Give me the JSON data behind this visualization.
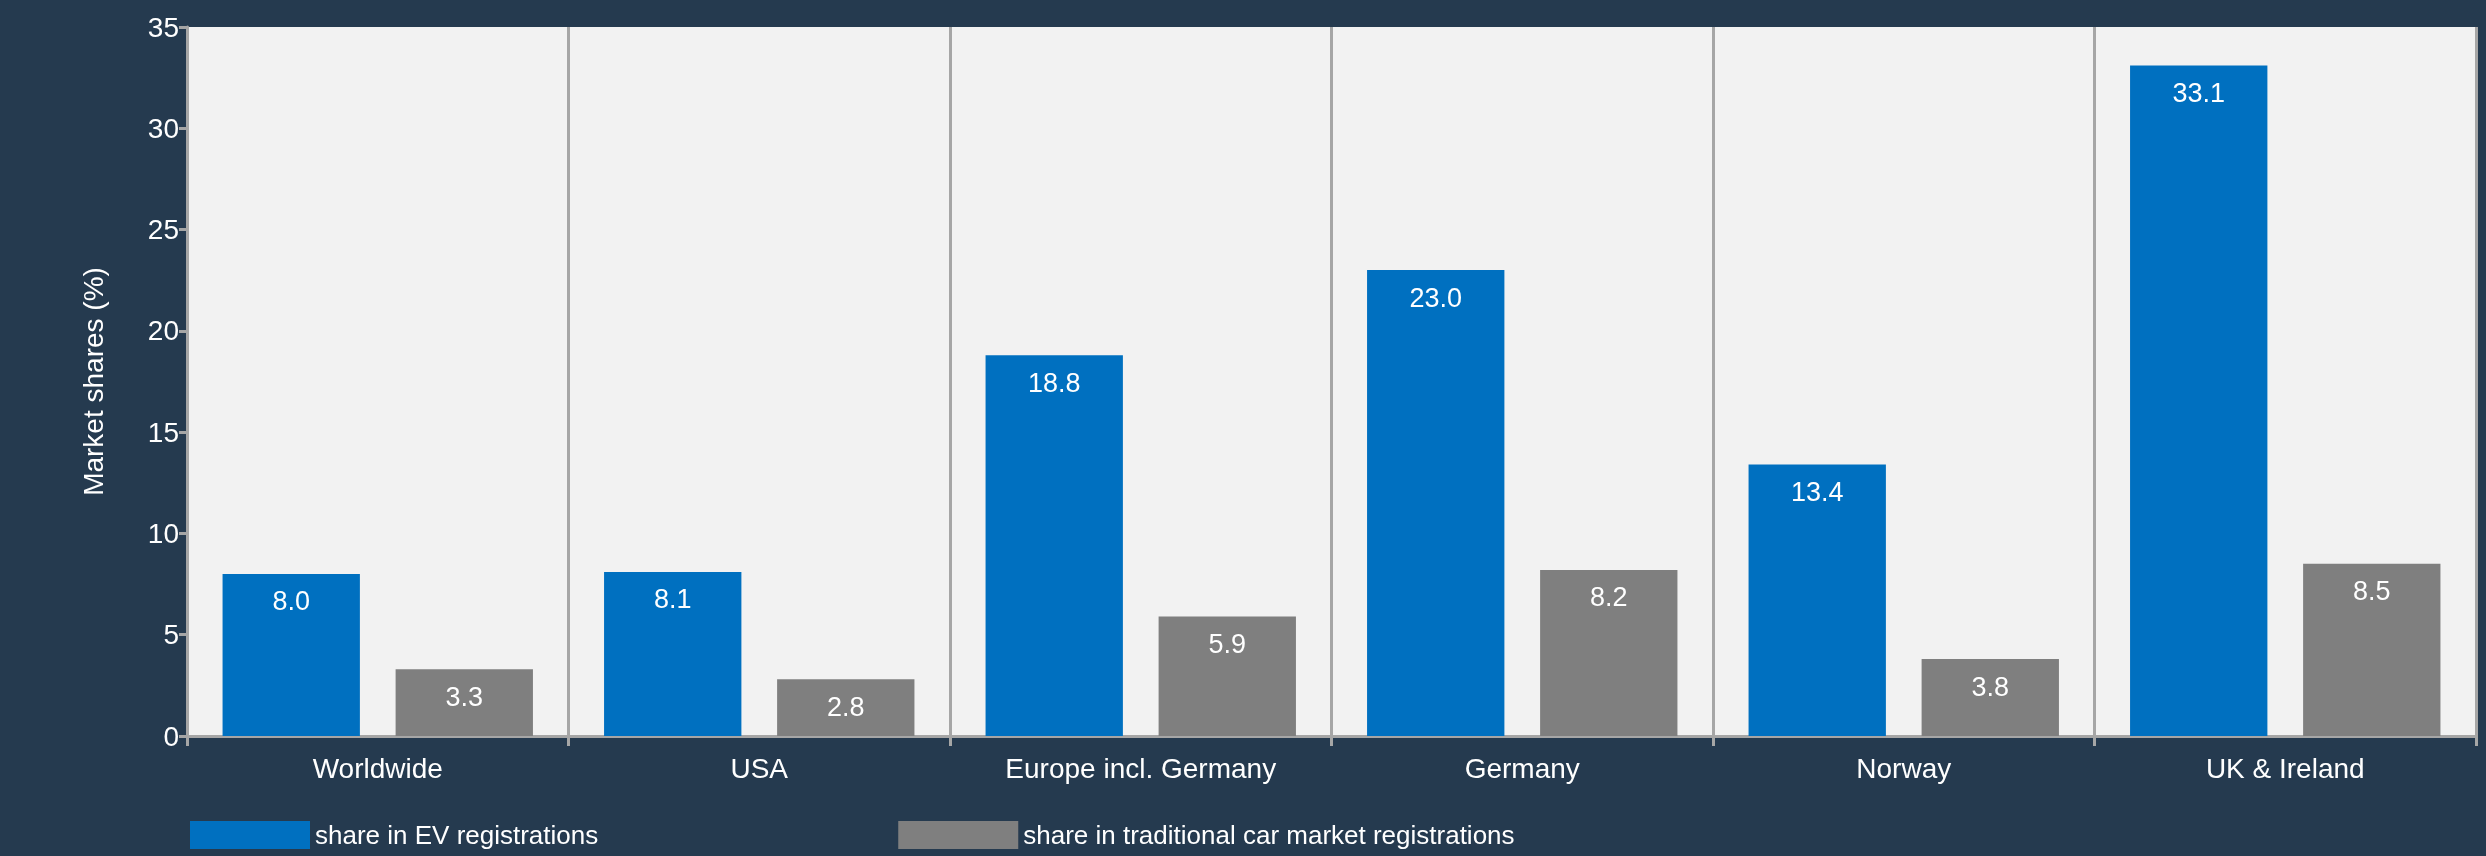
{
  "chart_data": {
    "type": "bar",
    "ylabel": "Market shares (%)",
    "categories": [
      "Worldwide",
      "USA",
      "Europe incl. Germany",
      "Germany",
      "Norway",
      "UK & Ireland"
    ],
    "series": [
      {
        "name": "share in EV registrations",
        "color": "#0070c0",
        "values": [
          8.0,
          8.1,
          18.8,
          23.0,
          13.4,
          33.1
        ],
        "value_labels": [
          "8.0",
          "8.1",
          "18.8",
          "23.0",
          "13.4",
          "33.1"
        ]
      },
      {
        "name": "share in traditional car market registrations",
        "color": "#7f7f7f",
        "values": [
          3.3,
          2.8,
          5.9,
          8.2,
          3.8,
          8.5
        ],
        "value_labels": [
          "3.3",
          "2.8",
          "5.9",
          "8.2",
          "3.8",
          "8.5"
        ]
      }
    ],
    "ylim": [
      0,
      35
    ],
    "yticks": [
      0,
      5,
      10,
      15,
      20,
      25,
      30,
      35
    ],
    "grid": "x",
    "legend": "bottom left"
  }
}
